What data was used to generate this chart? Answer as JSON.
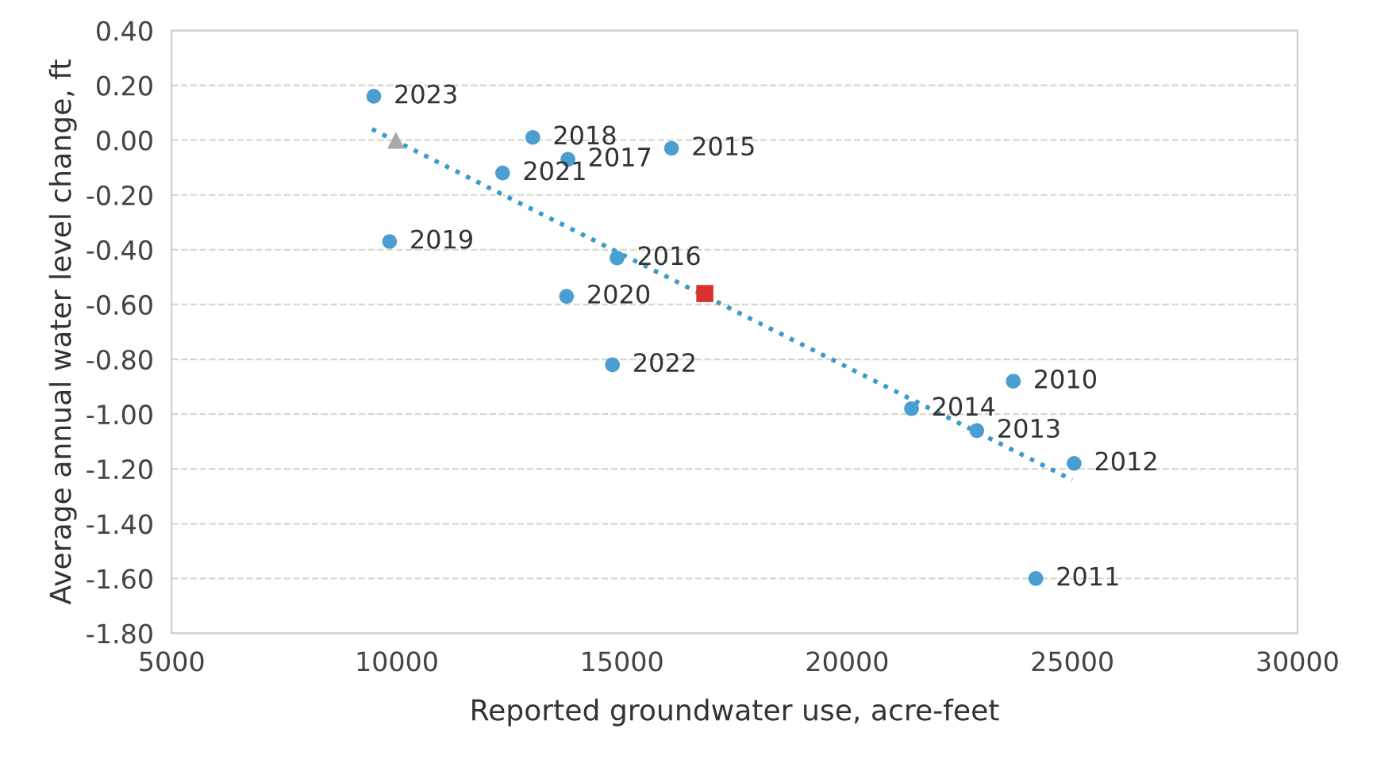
{
  "chart_data": {
    "type": "scatter",
    "xlabel": "Reported groundwater use, acre-feet",
    "ylabel": "Average annual water level change, ft",
    "xlim": [
      5000,
      30000
    ],
    "xticks": [
      5000,
      10000,
      15000,
      20000,
      25000,
      30000
    ],
    "ylim": [
      -1.8,
      0.4
    ],
    "yticks": [
      {
        "value": 0.4,
        "label": "0.40"
      },
      {
        "value": 0.2,
        "label": "0.20"
      },
      {
        "value": 0,
        "label": "0.00"
      },
      {
        "value": -0.2,
        "label": "-0.20"
      },
      {
        "value": -0.4,
        "label": "-0.40"
      },
      {
        "value": -0.6,
        "label": "-0.60"
      },
      {
        "value": -0.8,
        "label": "-0.80"
      },
      {
        "value": -1.0,
        "label": "-1.00"
      },
      {
        "value": -1.2,
        "label": "-1.20"
      },
      {
        "value": -1.4,
        "label": "-1.40"
      },
      {
        "value": -1.6,
        "label": "-1.60"
      },
      {
        "value": -1.8,
        "label": "-1.80"
      }
    ],
    "grid": "y",
    "legend": false,
    "series": [
      {
        "marker": "circle",
        "color": "#4a9fd0",
        "x": [
          9490,
          13020,
          13800,
          12350,
          16100,
          9840,
          14890,
          13770,
          14790,
          21430,
          22880,
          23690,
          25040,
          24190
        ],
        "values": [
          0.16,
          0.01,
          -0.07,
          -0.12,
          -0.03,
          -0.37,
          -0.43,
          -0.57,
          -0.82,
          -0.98,
          -1.06,
          -0.88,
          -1.18,
          -1.6
        ]
      },
      {
        "type": "line",
        "line_style": "dotted",
        "marker": "none",
        "color": "#3a9bc8",
        "x": [
          9450,
          25000
        ],
        "values": [
          0.04,
          -1.24
        ]
      },
      {
        "type": "scatter",
        "marker": "triangle",
        "color": "#a8a8a8",
        "x": [
          9980
        ],
        "values": [
          0.0
        ]
      },
      {
        "type": "scatter",
        "marker": "square",
        "color": "#d93030",
        "x": [
          16840
        ],
        "values": [
          -0.56
        ]
      }
    ],
    "annotations": [
      {
        "text": "2023",
        "x": 9490,
        "y": 0.16
      },
      {
        "text": "2018",
        "x": 13020,
        "y": 0.01
      },
      {
        "text": "2017",
        "x": 13800,
        "y": -0.07
      },
      {
        "text": "2021",
        "x": 12350,
        "y": -0.12
      },
      {
        "text": "2015",
        "x": 16100,
        "y": -0.03
      },
      {
        "text": "2019",
        "x": 9840,
        "y": -0.37
      },
      {
        "text": "2016",
        "x": 14890,
        "y": -0.43
      },
      {
        "text": "2020",
        "x": 13770,
        "y": -0.57
      },
      {
        "text": "2022",
        "x": 14790,
        "y": -0.82
      },
      {
        "text": "2014",
        "x": 21430,
        "y": -0.98
      },
      {
        "text": "2013",
        "x": 22880,
        "y": -1.06
      },
      {
        "text": "2010",
        "x": 23690,
        "y": -0.88
      },
      {
        "text": "2012",
        "x": 25040,
        "y": -1.18
      },
      {
        "text": "2011",
        "x": 24190,
        "y": -1.6
      }
    ]
  }
}
